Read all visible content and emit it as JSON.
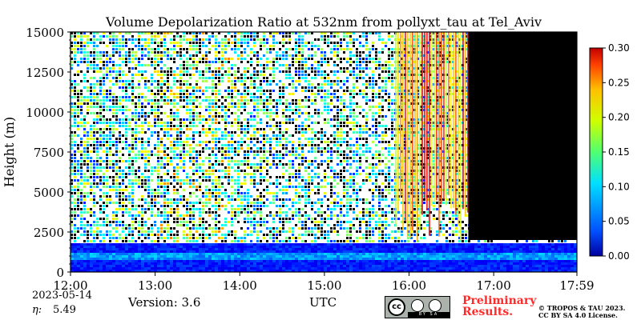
{
  "chart_data": {
    "type": "heatmap",
    "title": "Volume Depolarization Ratio at 532nm from pollyxt_tau at Tel_Aviv",
    "ylabel": "Height (m)",
    "xlabel": "UTC",
    "x_ticks": [
      "12:00",
      "13:00",
      "14:00",
      "15:00",
      "16:00",
      "17:00",
      "17:59"
    ],
    "x_range": [
      "12:00",
      "17:59"
    ],
    "y_ticks": [
      0,
      2500,
      5000,
      7500,
      10000,
      12500,
      15000
    ],
    "ylim": [
      0,
      15000
    ],
    "colorbar": {
      "ticks": [
        "0.00",
        "0.05",
        "0.10",
        "0.15",
        "0.20",
        "0.25",
        "0.30"
      ],
      "range": [
        0,
        0.3
      ],
      "colormap": "jet"
    },
    "features": [
      {
        "description": "high-depolarization aerosol layer near surface",
        "height_range": [
          0,
          1800
        ],
        "typical_value": 0.05
      },
      {
        "description": "enhanced depolarization columns",
        "time_range": [
          "15:50",
          "16:40"
        ],
        "typical_value": 0.25
      },
      {
        "description": "no-data region",
        "time_range": [
          "16:42",
          "17:59"
        ],
        "height_range": [
          2000,
          15000
        ]
      }
    ],
    "grid": false,
    "legend": "colorbar-right"
  },
  "footer": {
    "date": "2023-05-14",
    "eta_label": "η:",
    "eta_value": "5.49",
    "version": "Version: 3.6",
    "preliminary_line1": "Preliminary",
    "preliminary_line2": "Results.",
    "copyright_line1": "© TROPOS & TAU 2023.",
    "copyright_line2": "CC BY SA 4.0 License."
  },
  "cc_badge": {
    "cc": "cc",
    "strip": "BY   SA"
  },
  "colors": {
    "noise_white": "#ffffff",
    "no_data": "#000000",
    "low": "#0000a0",
    "high": "#ff2000",
    "preliminary": "#ff2b2b"
  }
}
